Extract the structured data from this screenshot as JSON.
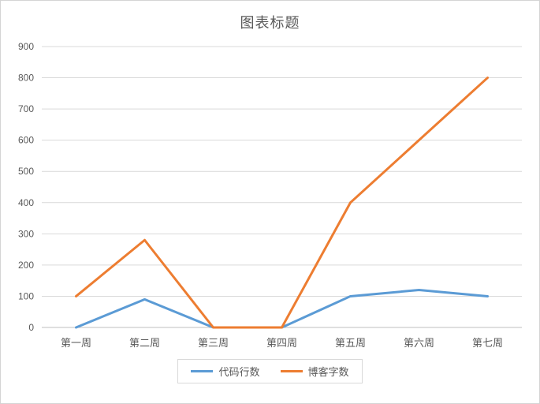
{
  "chart_data": {
    "type": "line",
    "title": "图表标题",
    "categories": [
      "第一周",
      "第二周",
      "第三周",
      "第四周",
      "第五周",
      "第六周",
      "第七周"
    ],
    "series": [
      {
        "name": "代码行数",
        "color": "#5b9bd5",
        "values": [
          0,
          90,
          0,
          0,
          100,
          120,
          100
        ]
      },
      {
        "name": "博客字数",
        "color": "#ed7d31",
        "values": [
          100,
          280,
          0,
          0,
          400,
          600,
          800
        ]
      }
    ],
    "xlabel": "",
    "ylabel": "",
    "ylim": [
      0,
      900
    ],
    "yticks": [
      0,
      100,
      200,
      300,
      400,
      500,
      600,
      700,
      800,
      900
    ],
    "grid": true,
    "legend_position": "bottom",
    "colors": {
      "gridline": "#d9d9d9",
      "axis_line": "#bfbfbf",
      "text": "#595959"
    }
  }
}
